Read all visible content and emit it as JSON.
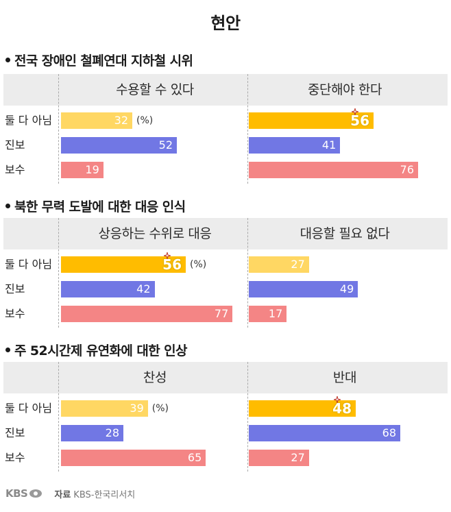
{
  "title": "현안",
  "colors": {
    "yellow_light": "#ffd763",
    "yellow_strong": "#ffbc00",
    "blue": "#7177e4",
    "red": "#f48585"
  },
  "rows": [
    "둘 다 아님",
    "진보",
    "보수"
  ],
  "unit_label": "(%)",
  "source": {
    "label": "자료",
    "text": "KBS-한국리서치"
  },
  "logo_text": "KBS",
  "chart_data": [
    {
      "type": "bar",
      "title": "전국 장애인 철폐연대 지하철 시위",
      "columns": [
        {
          "label": "수용할 수 있다",
          "values": [
            32,
            52,
            19
          ]
        },
        {
          "label": "중단해야 한다",
          "values": [
            56,
            41,
            76
          ]
        }
      ],
      "highlight": {
        "column": 1,
        "row": 0
      },
      "categories": [
        "둘 다 아님",
        "진보",
        "보수"
      ]
    },
    {
      "type": "bar",
      "title": "북한 무력 도발에 대한 대응 인식",
      "columns": [
        {
          "label": "상응하는 수위로 대응",
          "values": [
            56,
            42,
            77
          ]
        },
        {
          "label": "대응할 필요 없다",
          "values": [
            27,
            49,
            17
          ]
        }
      ],
      "highlight": {
        "column": 0,
        "row": 0
      },
      "categories": [
        "둘 다 아님",
        "진보",
        "보수"
      ]
    },
    {
      "type": "bar",
      "title": "주 52시간제 유연화에 대한 인상",
      "columns": [
        {
          "label": "찬성",
          "values": [
            39,
            28,
            65
          ]
        },
        {
          "label": "반대",
          "values": [
            48,
            68,
            27
          ]
        }
      ],
      "highlight": {
        "column": 1,
        "row": 0
      },
      "categories": [
        "둘 다 아님",
        "진보",
        "보수"
      ]
    }
  ]
}
